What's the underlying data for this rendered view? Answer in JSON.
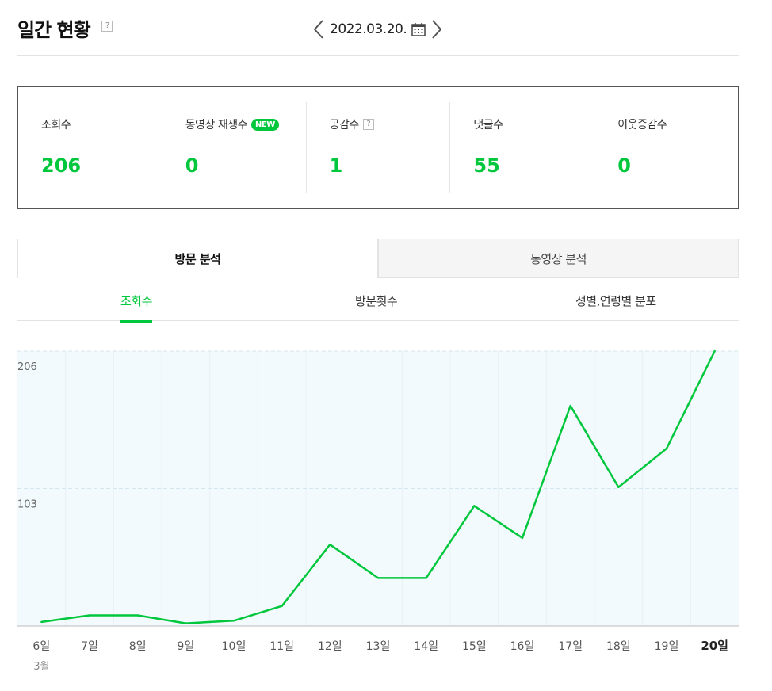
{
  "header": {
    "title": "일간 현황",
    "help": "?",
    "date": "2022.03.20.",
    "prev_icon": "chevron-left-icon",
    "next_icon": "chevron-right-icon",
    "calendar_icon": "calendar-icon"
  },
  "stats": [
    {
      "label": "조회수",
      "value": "206"
    },
    {
      "label": "동영상 재생수",
      "value": "0",
      "badge": "NEW"
    },
    {
      "label": "공감수",
      "value": "1",
      "help": "?"
    },
    {
      "label": "댓글수",
      "value": "55"
    },
    {
      "label": "이웃증감수",
      "value": "0"
    }
  ],
  "tabs": [
    {
      "label": "방문 분석",
      "active": true
    },
    {
      "label": "동영상 분석",
      "active": false
    }
  ],
  "subtabs": [
    {
      "label": "조회수",
      "active": true
    },
    {
      "label": "방문횟수",
      "active": false
    },
    {
      "label": "성별,연령별 분포",
      "active": false
    }
  ],
  "colors": {
    "accent": "#00c73c",
    "chart_bg": "#f3fafd"
  },
  "chart_data": {
    "type": "line",
    "x": [
      "6일",
      "7일",
      "8일",
      "9일",
      "10일",
      "11일",
      "12일",
      "13일",
      "14일",
      "15일",
      "16일",
      "17일",
      "18일",
      "19일",
      "20일"
    ],
    "x_sub": "3월",
    "series": [
      {
        "values": [
          3,
          8,
          8,
          2,
          4,
          15,
          61,
          36,
          36,
          90,
          66,
          165,
          104,
          133,
          206
        ]
      }
    ],
    "yticks": [
      "206",
      "103"
    ],
    "ylim": [
      0,
      206
    ],
    "grid": true
  }
}
